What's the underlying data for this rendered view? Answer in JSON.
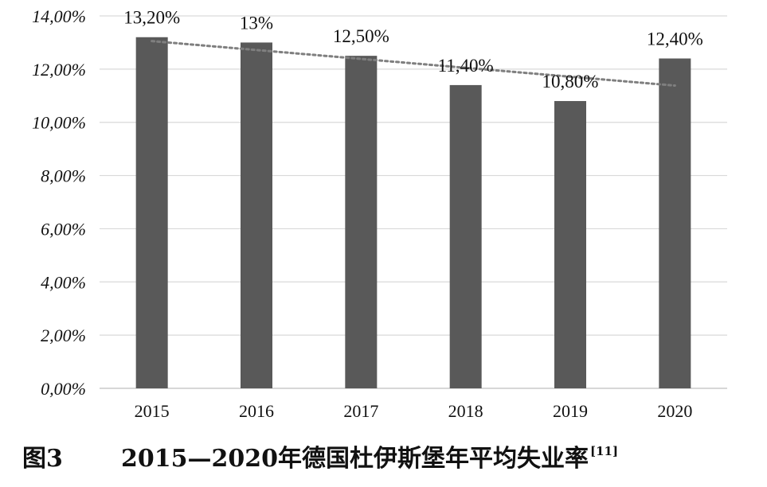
{
  "chart_data": {
    "type": "bar",
    "categories": [
      "2015",
      "2016",
      "2017",
      "2018",
      "2019",
      "2020"
    ],
    "values": [
      13.2,
      13.0,
      12.5,
      11.4,
      10.8,
      12.4
    ],
    "data_labels": [
      "13,20%",
      "13%",
      "12,50%",
      "11,40%",
      "10,80%",
      "12,40%"
    ],
    "y_ticks": [
      "0,00%",
      "2,00%",
      "4,00%",
      "6,00%",
      "8,00%",
      "10,00%",
      "12,00%",
      "14,00%"
    ],
    "ylim": [
      0,
      14
    ],
    "grid": true,
    "trendline": {
      "type": "linear",
      "style": "dotted"
    },
    "bar_color": "#595959",
    "grid_color": "#d9d9d9",
    "trend_color": "#7f7f7f"
  },
  "caption": {
    "figure_number": "图3",
    "title": "2015—2020年德国杜伊斯堡年平均失业率",
    "reference": "[11]"
  }
}
